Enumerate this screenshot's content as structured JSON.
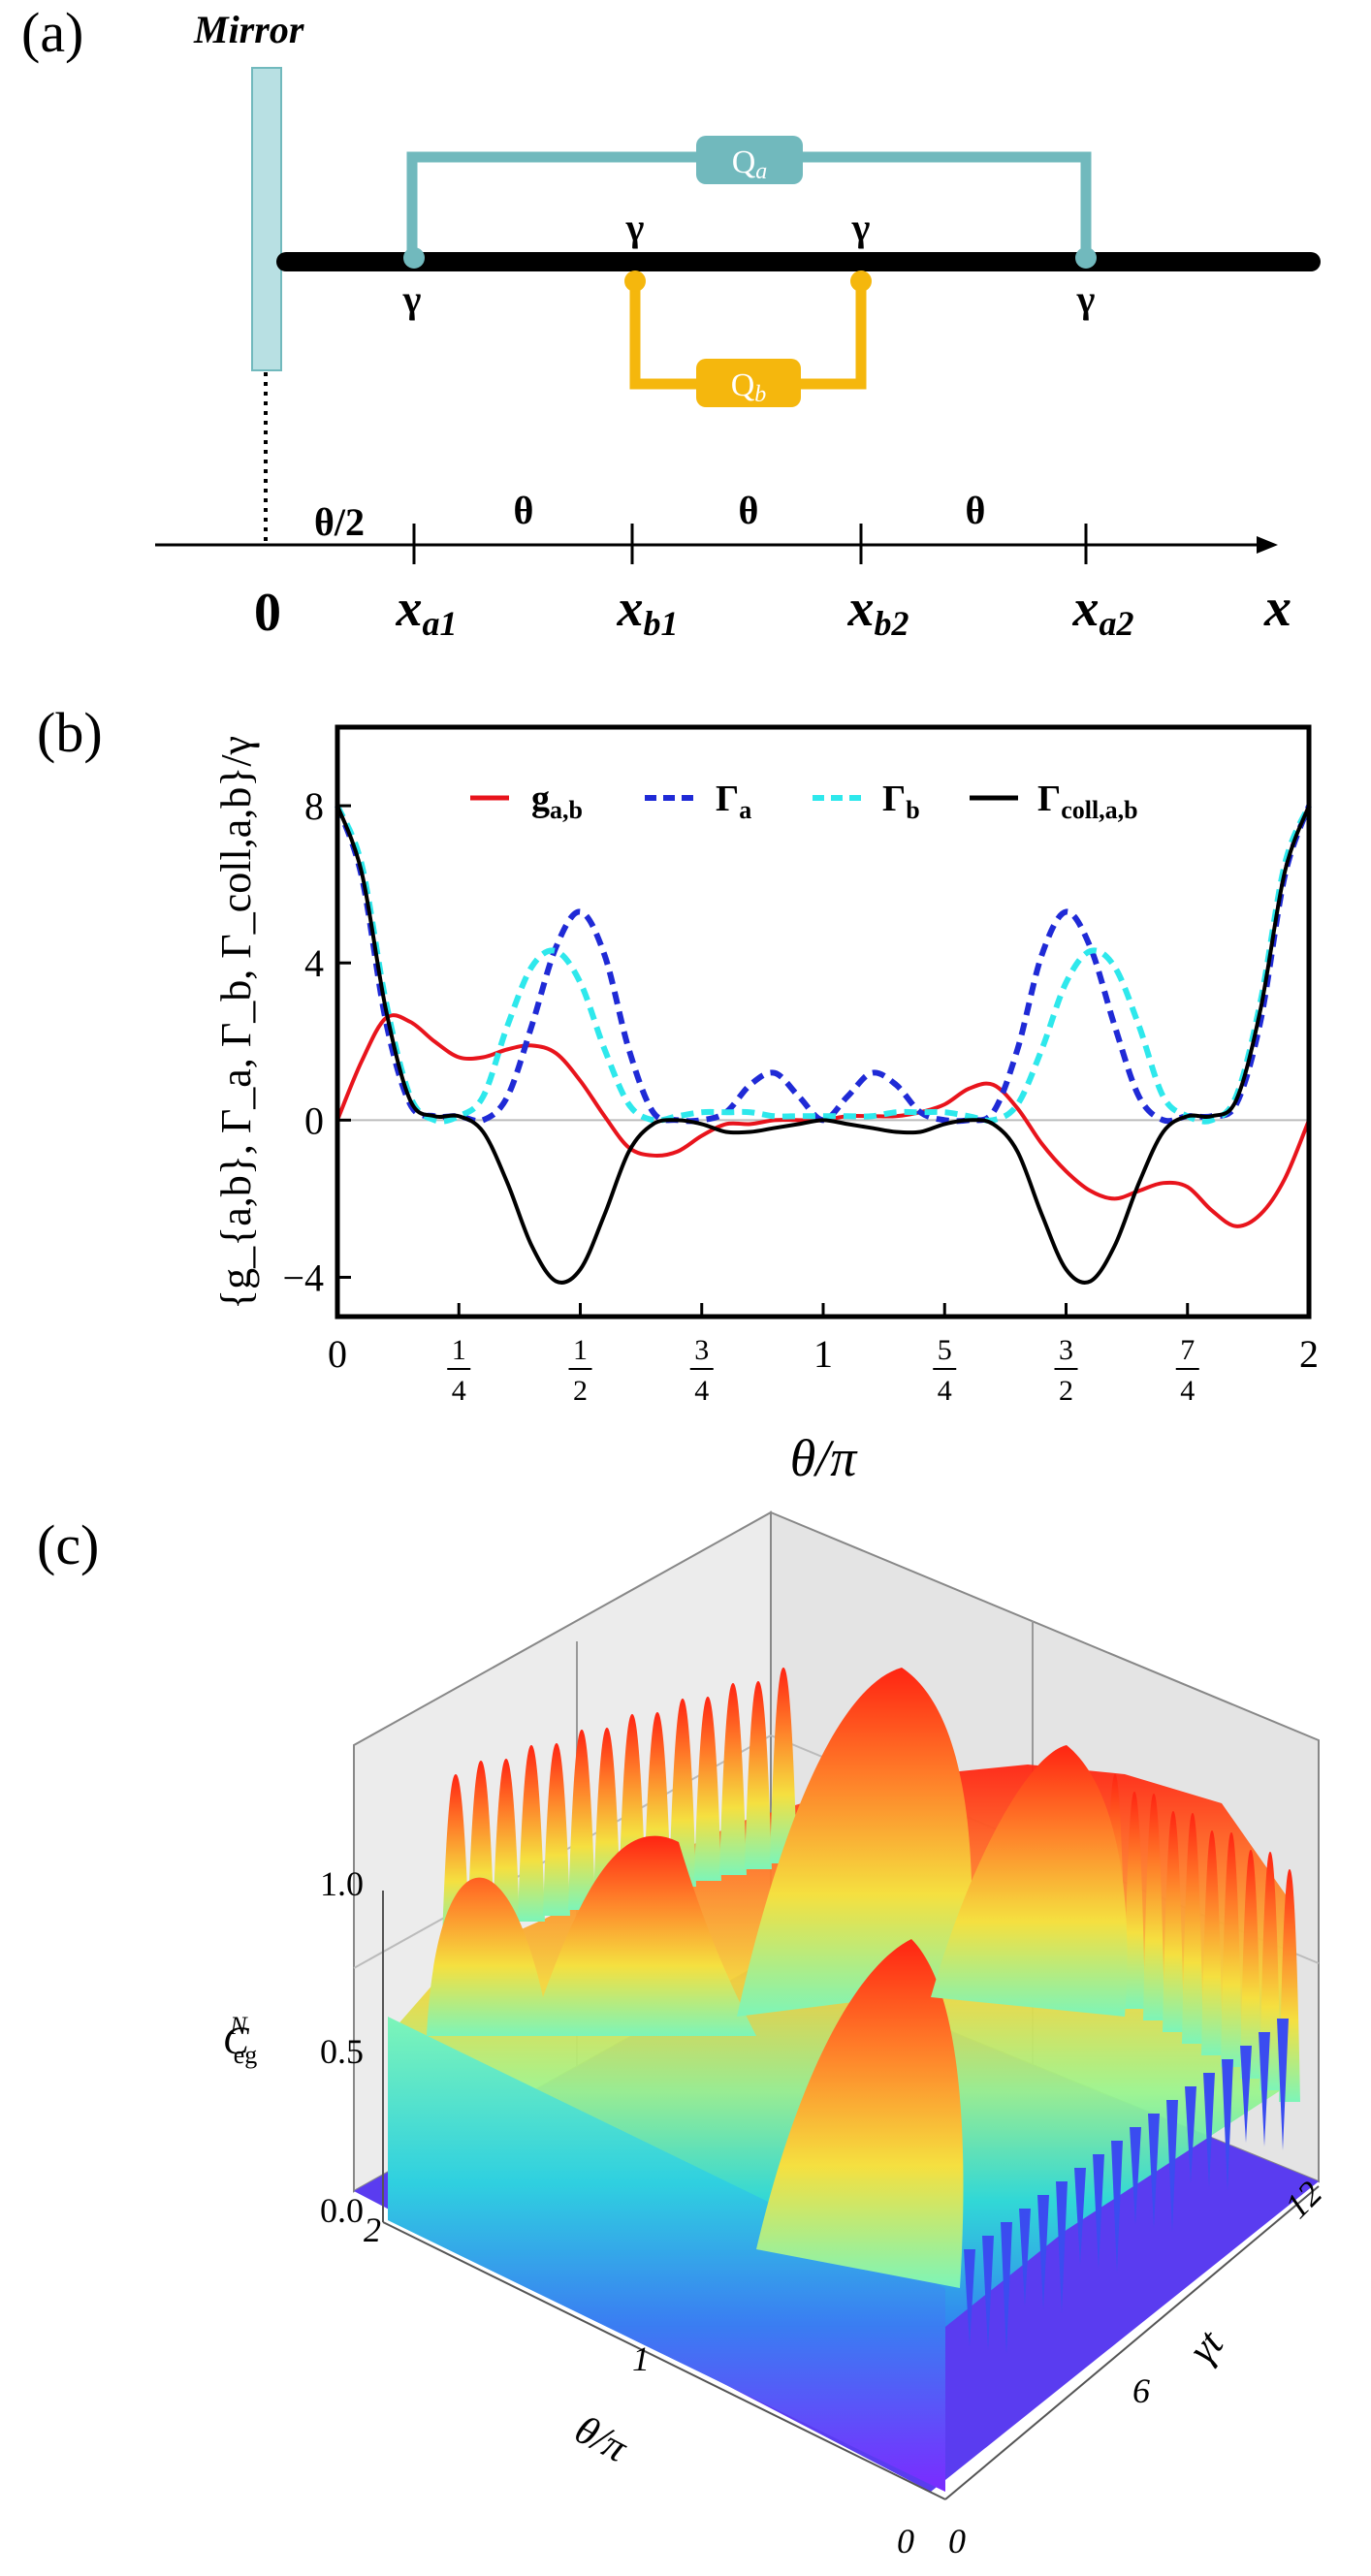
{
  "panel_labels": {
    "a": "(a)",
    "b": "(b)",
    "c": "(c)"
  },
  "panel_a": {
    "mirror_label": "Mirror",
    "qa_label": "Q",
    "qa_sub": "a",
    "qb_label": "Q",
    "qb_sub": "b",
    "gamma": "γ",
    "origin_label": "0",
    "axis_label": "x",
    "half_theta": "θ/2",
    "theta": "θ",
    "positions": [
      {
        "base": "x",
        "sub": "a1"
      },
      {
        "base": "x",
        "sub": "b1"
      },
      {
        "base": "x",
        "sub": "b2"
      },
      {
        "base": "x",
        "sub": "a2"
      }
    ],
    "colors": {
      "qa": "#71b9bd",
      "qb": "#f5b70d",
      "mirror_fill": "#b8e0e3",
      "mirror_stroke": "#71b9bd"
    }
  },
  "chart_data": [
    {
      "type": "line",
      "panel": "b",
      "ylabel": "{g_{a,b}, Γ_a, Γ_b, Γ_coll,a,b}/γ",
      "xlabel": "θ/π",
      "xlim": [
        0,
        2
      ],
      "ylim": [
        -5,
        10
      ],
      "x_ticks": [
        0,
        0.25,
        0.5,
        0.75,
        1,
        1.25,
        1.5,
        1.75,
        2
      ],
      "x_tick_labels": [
        "0",
        "1/4",
        "1/2",
        "3/4",
        "1",
        "5/4",
        "3/2",
        "7/4",
        "2"
      ],
      "y_ticks": [
        -4,
        0,
        4,
        8
      ],
      "y_tick_labels": [
        "−4",
        "0",
        "4",
        "8"
      ],
      "legend_position": "top",
      "series": [
        {
          "name": "g_a,b",
          "legend": "g",
          "legend_sub": "a,b",
          "color": "#e8141c",
          "style": "solid",
          "x": [
            0,
            0.05,
            0.1,
            0.15,
            0.2,
            0.25,
            0.3,
            0.35,
            0.4,
            0.45,
            0.5,
            0.55,
            0.6,
            0.65,
            0.7,
            0.75,
            0.8,
            0.85,
            0.9,
            0.95,
            1,
            1.05,
            1.1,
            1.15,
            1.2,
            1.25,
            1.3,
            1.35,
            1.4,
            1.45,
            1.5,
            1.55,
            1.6,
            1.65,
            1.7,
            1.75,
            1.8,
            1.85,
            1.9,
            1.95,
            2
          ],
          "y": [
            0,
            1.5,
            2.6,
            2.5,
            2.0,
            1.6,
            1.6,
            1.8,
            1.9,
            1.7,
            1.0,
            0.1,
            -0.7,
            -0.9,
            -0.8,
            -0.4,
            -0.1,
            -0.1,
            0,
            0,
            0,
            0.1,
            0.1,
            0.1,
            0.2,
            0.4,
            0.8,
            0.9,
            0.3,
            -0.6,
            -1.3,
            -1.8,
            -2.0,
            -1.8,
            -1.6,
            -1.7,
            -2.3,
            -2.7,
            -2.4,
            -1.5,
            0
          ]
        },
        {
          "name": "Γ_a",
          "legend": "Γ",
          "legend_sub": "a",
          "color": "#1f2ad6",
          "style": "dashed",
          "x": [
            0,
            0.05,
            0.1,
            0.15,
            0.2,
            0.25,
            0.3,
            0.35,
            0.4,
            0.45,
            0.5,
            0.55,
            0.6,
            0.65,
            0.7,
            0.75,
            0.8,
            0.85,
            0.9,
            0.95,
            1,
            1.05,
            1.1,
            1.15,
            1.2,
            1.25,
            1.3,
            1.35,
            1.4,
            1.45,
            1.5,
            1.55,
            1.6,
            1.65,
            1.7,
            1.75,
            1.8,
            1.85,
            1.9,
            1.95,
            2
          ],
          "y": [
            8,
            6.2,
            2.5,
            0.4,
            0.1,
            0.1,
            0.0,
            0.6,
            2.4,
            4.4,
            5.3,
            4.2,
            1.8,
            0.2,
            0.0,
            0.0,
            0.2,
            0.9,
            1.2,
            0.6,
            0.0,
            0.6,
            1.2,
            0.9,
            0.2,
            0.0,
            0.0,
            0.2,
            1.8,
            4.2,
            5.3,
            4.4,
            2.4,
            0.6,
            0.0,
            0.1,
            0.1,
            0.4,
            2.5,
            6.2,
            8
          ]
        },
        {
          "name": "Γ_b",
          "legend": "Γ",
          "legend_sub": "b",
          "color": "#2ee8ec",
          "style": "dashed",
          "x": [
            0,
            0.05,
            0.1,
            0.15,
            0.2,
            0.25,
            0.3,
            0.35,
            0.4,
            0.45,
            0.5,
            0.55,
            0.6,
            0.65,
            0.7,
            0.75,
            0.8,
            0.85,
            0.9,
            0.95,
            1,
            1.05,
            1.1,
            1.15,
            1.2,
            1.25,
            1.3,
            1.35,
            1.4,
            1.45,
            1.5,
            1.55,
            1.6,
            1.65,
            1.7,
            1.75,
            1.8,
            1.85,
            1.9,
            1.95,
            2
          ],
          "y": [
            8,
            6.5,
            3.0,
            0.6,
            0.0,
            0.1,
            0.6,
            2.4,
            3.9,
            4.3,
            3.5,
            1.8,
            0.4,
            0.0,
            0.1,
            0.2,
            0.2,
            0.2,
            0.1,
            0.1,
            0.1,
            0.1,
            0.1,
            0.2,
            0.2,
            0.2,
            0.1,
            0.0,
            0.4,
            1.8,
            3.5,
            4.3,
            3.9,
            2.4,
            0.6,
            0.1,
            0.0,
            0.6,
            3.0,
            6.5,
            8
          ]
        },
        {
          "name": "Γ_coll,a,b",
          "legend": "Γ",
          "legend_sub": "coll,a,b",
          "color": "#000000",
          "style": "solid",
          "x": [
            0,
            0.05,
            0.1,
            0.15,
            0.2,
            0.25,
            0.3,
            0.35,
            0.4,
            0.45,
            0.5,
            0.55,
            0.6,
            0.65,
            0.7,
            0.75,
            0.8,
            0.85,
            0.9,
            0.95,
            1,
            1.05,
            1.1,
            1.15,
            1.2,
            1.25,
            1.3,
            1.35,
            1.4,
            1.45,
            1.5,
            1.55,
            1.6,
            1.65,
            1.7,
            1.75,
            1.8,
            1.85,
            1.9,
            1.95,
            2
          ],
          "y": [
            8,
            6.3,
            2.8,
            0.5,
            0.1,
            0.1,
            -0.3,
            -1.6,
            -3.2,
            -4.1,
            -3.8,
            -2.4,
            -0.8,
            -0.1,
            0.0,
            -0.1,
            -0.3,
            -0.3,
            -0.2,
            -0.1,
            0.0,
            -0.1,
            -0.2,
            -0.3,
            -0.3,
            -0.1,
            0.0,
            -0.1,
            -0.8,
            -2.4,
            -3.8,
            -4.1,
            -3.2,
            -1.6,
            -0.3,
            0.1,
            0.1,
            0.5,
            2.8,
            6.3,
            8
          ]
        }
      ]
    },
    {
      "type": "surface",
      "panel": "c",
      "zlabel": "C_eg^N",
      "zlim": [
        0,
        1
      ],
      "z_tick_labels": [
        "0.0",
        "0.5",
        "1.0"
      ],
      "theta_axis_label": "θ/π",
      "theta_tick_labels": [
        "2",
        "1",
        "0"
      ],
      "time_axis_label": "γt",
      "time_tick_labels": [
        "0",
        "6",
        "12"
      ],
      "colormap": "rainbow"
    }
  ]
}
